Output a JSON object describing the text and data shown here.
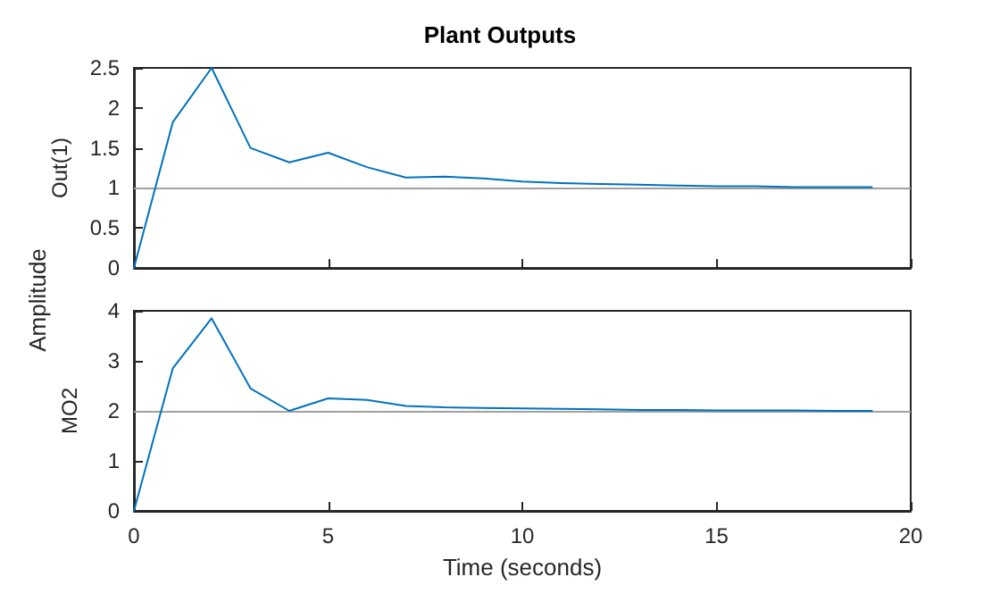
{
  "chart_data": [
    {
      "type": "line",
      "title": "Plant Outputs",
      "ylabel": "Out(1)",
      "annotations": [
        "Amplitude"
      ],
      "x": [
        0,
        1,
        2,
        3,
        4,
        5,
        6,
        7,
        8,
        9,
        10,
        11,
        12,
        13,
        14,
        15,
        16,
        17,
        18,
        19
      ],
      "series": [
        {
          "color": "#0072bd",
          "values": [
            0,
            1.82,
            2.5,
            1.5,
            1.32,
            1.44,
            1.26,
            1.13,
            1.14,
            1.12,
            1.08,
            1.06,
            1.05,
            1.04,
            1.03,
            1.02,
            1.02,
            1.01,
            1.01,
            1.01
          ]
        }
      ],
      "ref_lines": [
        {
          "axis": "y",
          "value": 1,
          "color": "#a0a0a0"
        }
      ],
      "xlim": [
        0,
        20
      ],
      "xticks": [
        0,
        5,
        10,
        15,
        20
      ],
      "ylim": [
        0,
        2.5
      ],
      "yticks": [
        0,
        0.5,
        1,
        1.5,
        2,
        2.5
      ],
      "tick_labels": "y",
      "grid": false,
      "marker": "none",
      "line_style": "solid"
    },
    {
      "type": "line",
      "ylabel": "MO2",
      "xlabel": "Time (seconds)",
      "x": [
        0,
        1,
        2,
        3,
        4,
        5,
        6,
        7,
        8,
        9,
        10,
        11,
        12,
        13,
        14,
        15,
        16,
        17,
        18,
        19
      ],
      "series": [
        {
          "color": "#0072bd",
          "values": [
            0,
            2.85,
            3.85,
            2.45,
            2.0,
            2.25,
            2.22,
            2.1,
            2.07,
            2.06,
            2.05,
            2.04,
            2.03,
            2.02,
            2.02,
            2.01,
            2.01,
            2.01,
            2.0,
            2.0
          ]
        }
      ],
      "ref_lines": [
        {
          "axis": "y",
          "value": 2,
          "color": "#a0a0a0"
        }
      ],
      "xlim": [
        0,
        20
      ],
      "xticks": [
        0,
        5,
        10,
        15,
        20
      ],
      "ylim": [
        0,
        4
      ],
      "yticks": [
        0,
        1,
        2,
        3,
        4
      ],
      "grid": false,
      "marker": "none",
      "line_style": "solid"
    }
  ]
}
